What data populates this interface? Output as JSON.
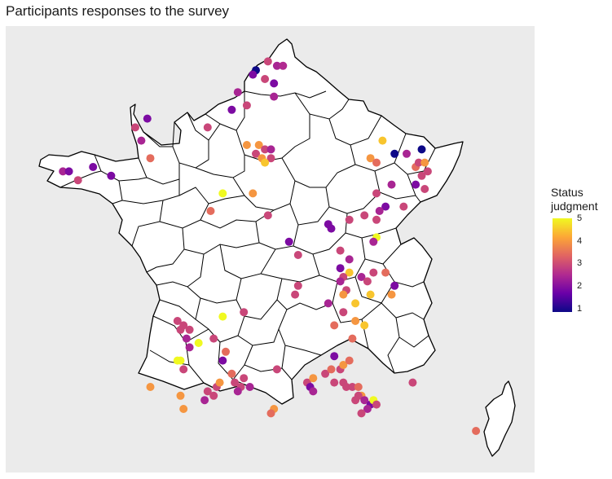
{
  "title": "Participants responses to the survey",
  "legend": {
    "title_line1": "Status",
    "title_line2": "judgment",
    "ticks": [
      "5",
      "4",
      "3",
      "2",
      "1"
    ],
    "min": 1,
    "max": 5,
    "palette": [
      "#0d0887",
      "#6a00a8",
      "#b12a90",
      "#e16462",
      "#fca636",
      "#f0f921"
    ]
  },
  "colors": {
    "panel": "#ebebeb",
    "border": "#000000",
    "land": "#ffffff"
  },
  "chart_data": {
    "type": "scatter",
    "color_scale": "plasma",
    "points": [
      {
        "lon": 2.4,
        "lat": 50.9,
        "v": 3
      },
      {
        "lon": 2.7,
        "lat": 50.8,
        "v": 2.5
      },
      {
        "lon": 2.9,
        "lat": 50.8,
        "v": 2.6
      },
      {
        "lon": 2.0,
        "lat": 50.7,
        "v": 1
      },
      {
        "lon": 1.9,
        "lat": 50.6,
        "v": 2
      },
      {
        "lon": 2.3,
        "lat": 50.5,
        "v": 3
      },
      {
        "lon": 2.6,
        "lat": 50.4,
        "v": 2
      },
      {
        "lon": 1.4,
        "lat": 50.2,
        "v": 2.5
      },
      {
        "lon": 2.6,
        "lat": 50.1,
        "v": 2.5
      },
      {
        "lon": 1.2,
        "lat": 49.8,
        "v": 2
      },
      {
        "lon": 1.7,
        "lat": 49.9,
        "v": 3
      },
      {
        "lon": -1.6,
        "lat": 49.6,
        "v": 2
      },
      {
        "lon": -2.0,
        "lat": 49.4,
        "v": 3
      },
      {
        "lon": 0.4,
        "lat": 49.4,
        "v": 3
      },
      {
        "lon": -1.8,
        "lat": 49.1,
        "v": 2.5
      },
      {
        "lon": 1.7,
        "lat": 49.0,
        "v": 4
      },
      {
        "lon": 2.1,
        "lat": 49.0,
        "v": 4
      },
      {
        "lon": 2.3,
        "lat": 48.9,
        "v": 3
      },
      {
        "lon": 2.5,
        "lat": 48.9,
        "v": 2.5
      },
      {
        "lon": 2.0,
        "lat": 48.8,
        "v": 3
      },
      {
        "lon": 2.2,
        "lat": 48.7,
        "v": 4
      },
      {
        "lon": 2.5,
        "lat": 48.7,
        "v": 3
      },
      {
        "lon": 2.3,
        "lat": 48.6,
        "v": 4.5
      },
      {
        "lon": -4.4,
        "lat": 48.4,
        "v": 2.5
      },
      {
        "lon": -4.2,
        "lat": 48.4,
        "v": 2
      },
      {
        "lon": -3.4,
        "lat": 48.5,
        "v": 2
      },
      {
        "lon": -1.5,
        "lat": 48.7,
        "v": 3.5
      },
      {
        "lon": -2.8,
        "lat": 48.3,
        "v": 2
      },
      {
        "lon": -3.9,
        "lat": 48.2,
        "v": 3
      },
      {
        "lon": 0.9,
        "lat": 47.9,
        "v": 5
      },
      {
        "lon": 1.9,
        "lat": 47.9,
        "v": 4
      },
      {
        "lon": 0.5,
        "lat": 47.5,
        "v": 3.5
      },
      {
        "lon": 2.4,
        "lat": 47.4,
        "v": 3
      },
      {
        "lon": 3.1,
        "lat": 46.8,
        "v": 2
      },
      {
        "lon": 3.4,
        "lat": 46.5,
        "v": 3
      },
      {
        "lon": 3.4,
        "lat": 45.8,
        "v": 3
      },
      {
        "lon": 3.3,
        "lat": 45.6,
        "v": 3
      },
      {
        "lon": 6.2,
        "lat": 49.1,
        "v": 4.5
      },
      {
        "lon": 6.6,
        "lat": 48.8,
        "v": 1
      },
      {
        "lon": 7.0,
        "lat": 48.8,
        "v": 2.5
      },
      {
        "lon": 7.5,
        "lat": 48.9,
        "v": 1
      },
      {
        "lon": 5.8,
        "lat": 48.7,
        "v": 4
      },
      {
        "lon": 6.0,
        "lat": 48.6,
        "v": 3.5
      },
      {
        "lon": 7.3,
        "lat": 48.5,
        "v": 3.5
      },
      {
        "lon": 7.4,
        "lat": 48.6,
        "v": 3
      },
      {
        "lon": 7.6,
        "lat": 48.6,
        "v": 4
      },
      {
        "lon": 7.7,
        "lat": 48.4,
        "v": 3
      },
      {
        "lon": 7.5,
        "lat": 48.3,
        "v": 3
      },
      {
        "lon": 7.3,
        "lat": 48.1,
        "v": 2
      },
      {
        "lon": 7.6,
        "lat": 48.0,
        "v": 3
      },
      {
        "lon": 6.5,
        "lat": 48.1,
        "v": 2.5
      },
      {
        "lon": 6.0,
        "lat": 47.9,
        "v": 3
      },
      {
        "lon": 6.3,
        "lat": 47.6,
        "v": 2
      },
      {
        "lon": 6.1,
        "lat": 47.5,
        "v": 2.5
      },
      {
        "lon": 5.6,
        "lat": 47.4,
        "v": 3
      },
      {
        "lon": 6.0,
        "lat": 47.3,
        "v": 3
      },
      {
        "lon": 6.9,
        "lat": 47.6,
        "v": 3
      },
      {
        "lon": 5.1,
        "lat": 47.3,
        "v": 3
      },
      {
        "lon": 4.4,
        "lat": 47.2,
        "v": 2
      },
      {
        "lon": 4.5,
        "lat": 47.1,
        "v": 2
      },
      {
        "lon": 6.0,
        "lat": 46.9,
        "v": 5
      },
      {
        "lon": 5.9,
        "lat": 46.8,
        "v": 2.5
      },
      {
        "lon": 4.8,
        "lat": 46.6,
        "v": 3
      },
      {
        "lon": 5.1,
        "lat": 46.4,
        "v": 2.5
      },
      {
        "lon": 4.8,
        "lat": 46.2,
        "v": 2
      },
      {
        "lon": 5.1,
        "lat": 46.1,
        "v": 4.5
      },
      {
        "lon": 4.9,
        "lat": 46.0,
        "v": 3
      },
      {
        "lon": 4.8,
        "lat": 45.9,
        "v": 2.5
      },
      {
        "lon": 5.5,
        "lat": 46.0,
        "v": 2.5
      },
      {
        "lon": 5.7,
        "lat": 45.9,
        "v": 3
      },
      {
        "lon": 5.9,
        "lat": 46.1,
        "v": 3
      },
      {
        "lon": 6.3,
        "lat": 46.1,
        "v": 3.5
      },
      {
        "lon": 5.8,
        "lat": 45.6,
        "v": 4.5
      },
      {
        "lon": 6.6,
        "lat": 45.8,
        "v": 2
      },
      {
        "lon": 6.5,
        "lat": 45.6,
        "v": 4
      },
      {
        "lon": 5.0,
        "lat": 45.7,
        "v": 3
      },
      {
        "lon": 4.9,
        "lat": 45.6,
        "v": 4
      },
      {
        "lon": 5.3,
        "lat": 45.4,
        "v": 4.5
      },
      {
        "lon": 4.4,
        "lat": 45.4,
        "v": 2.5
      },
      {
        "lon": 4.9,
        "lat": 45.2,
        "v": 3
      },
      {
        "lon": 5.3,
        "lat": 45.0,
        "v": 4
      },
      {
        "lon": 5.6,
        "lat": 44.9,
        "v": 4.5
      },
      {
        "lon": 4.6,
        "lat": 44.9,
        "v": 3.5
      },
      {
        "lon": 5.2,
        "lat": 44.6,
        "v": 3.5
      },
      {
        "lon": -0.6,
        "lat": 45.0,
        "v": 3
      },
      {
        "lon": -0.4,
        "lat": 44.9,
        "v": 3
      },
      {
        "lon": -0.5,
        "lat": 44.8,
        "v": 3
      },
      {
        "lon": -0.2,
        "lat": 44.8,
        "v": 3
      },
      {
        "lon": -0.3,
        "lat": 44.6,
        "v": 2.5
      },
      {
        "lon": 0.1,
        "lat": 44.5,
        "v": 5
      },
      {
        "lon": 0.6,
        "lat": 44.6,
        "v": 3
      },
      {
        "lon": -0.2,
        "lat": 44.4,
        "v": 2.5
      },
      {
        "lon": 0.9,
        "lat": 45.1,
        "v": 5
      },
      {
        "lon": 1.6,
        "lat": 45.2,
        "v": 3
      },
      {
        "lon": 1.0,
        "lat": 44.3,
        "v": 3.5
      },
      {
        "lon": 0.9,
        "lat": 44.1,
        "v": 2
      },
      {
        "lon": -0.6,
        "lat": 44.1,
        "v": 5
      },
      {
        "lon": -0.5,
        "lat": 44.1,
        "v": 5
      },
      {
        "lon": -0.4,
        "lat": 43.9,
        "v": 3
      },
      {
        "lon": -1.5,
        "lat": 43.5,
        "v": 4
      },
      {
        "lon": -0.5,
        "lat": 43.3,
        "v": 4
      },
      {
        "lon": -0.4,
        "lat": 43.0,
        "v": 4
      },
      {
        "lon": 0.4,
        "lat": 43.4,
        "v": 3
      },
      {
        "lon": 0.6,
        "lat": 43.3,
        "v": 3
      },
      {
        "lon": 0.7,
        "lat": 43.5,
        "v": 3
      },
      {
        "lon": 0.3,
        "lat": 43.2,
        "v": 2.5
      },
      {
        "lon": 0.8,
        "lat": 43.6,
        "v": 4
      },
      {
        "lon": 1.3,
        "lat": 43.6,
        "v": 3
      },
      {
        "lon": 1.5,
        "lat": 43.5,
        "v": 3
      },
      {
        "lon": 1.4,
        "lat": 43.4,
        "v": 2.5
      },
      {
        "lon": 1.6,
        "lat": 43.7,
        "v": 3
      },
      {
        "lon": 1.8,
        "lat": 43.5,
        "v": 2.5
      },
      {
        "lon": 1.2,
        "lat": 43.8,
        "v": 3.5
      },
      {
        "lon": 2.7,
        "lat": 43.9,
        "v": 3
      },
      {
        "lon": 2.6,
        "lat": 43.0,
        "v": 4
      },
      {
        "lon": 2.5,
        "lat": 42.9,
        "v": 3.5
      },
      {
        "lon": 3.7,
        "lat": 43.6,
        "v": 3
      },
      {
        "lon": 3.9,
        "lat": 43.7,
        "v": 4
      },
      {
        "lon": 3.8,
        "lat": 43.5,
        "v": 2
      },
      {
        "lon": 3.9,
        "lat": 43.4,
        "v": 2.5
      },
      {
        "lon": 4.3,
        "lat": 43.8,
        "v": 3
      },
      {
        "lon": 4.5,
        "lat": 43.9,
        "v": 3.5
      },
      {
        "lon": 4.8,
        "lat": 43.9,
        "v": 3
      },
      {
        "lon": 4.6,
        "lat": 44.2,
        "v": 2
      },
      {
        "lon": 4.9,
        "lat": 44.0,
        "v": 4
      },
      {
        "lon": 5.1,
        "lat": 44.1,
        "v": 3.5
      },
      {
        "lon": 4.6,
        "lat": 43.6,
        "v": 3
      },
      {
        "lon": 4.9,
        "lat": 43.6,
        "v": 3
      },
      {
        "lon": 5.0,
        "lat": 43.5,
        "v": 3
      },
      {
        "lon": 5.2,
        "lat": 43.5,
        "v": 3
      },
      {
        "lon": 5.4,
        "lat": 43.5,
        "v": 3.5
      },
      {
        "lon": 5.5,
        "lat": 43.3,
        "v": 4
      },
      {
        "lon": 5.4,
        "lat": 43.3,
        "v": 3
      },
      {
        "lon": 5.3,
        "lat": 43.2,
        "v": 3
      },
      {
        "lon": 5.6,
        "lat": 43.2,
        "v": 2.5
      },
      {
        "lon": 5.8,
        "lat": 43.1,
        "v": 2
      },
      {
        "lon": 5.9,
        "lat": 43.2,
        "v": 5
      },
      {
        "lon": 6.0,
        "lat": 43.1,
        "v": 3
      },
      {
        "lon": 5.7,
        "lat": 43.0,
        "v": 2.5
      },
      {
        "lon": 5.5,
        "lat": 42.9,
        "v": 3
      },
      {
        "lon": 7.2,
        "lat": 43.6,
        "v": 3
      },
      {
        "lon": 9.3,
        "lat": 42.5,
        "v": 3.5
      }
    ]
  }
}
